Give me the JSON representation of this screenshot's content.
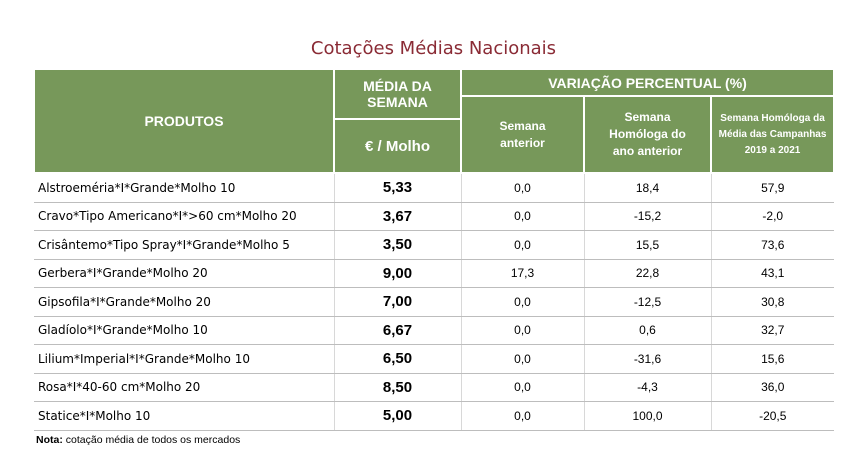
{
  "header": {
    "title": "Cotações Médias Nacionais"
  },
  "table": {
    "columns": {
      "produtos": "PRODUTOS",
      "media": "MÉDIA DA SEMANA",
      "unit": "€ / Molho",
      "variacao": "VARIAÇÃO PERCENTUAL (%)",
      "semana_anterior": "Semana anterior",
      "homologa": "Semana Homóloga do ano anterior",
      "campanhas": "Semana Homóloga da Média das Campanhas 2019 a 2021"
    },
    "rows": [
      [
        "Alstroeméria*I*Grande*Molho 10",
        "5,33",
        "0,0",
        "18,4",
        "57,9"
      ],
      [
        "Cravo*Tipo Americano*I*>60 cm*Molho 20",
        "3,67",
        "0,0",
        "-15,2",
        "-2,0"
      ],
      [
        "Crisântemo*Tipo Spray*I*Grande*Molho 5",
        "3,50",
        "0,0",
        "15,5",
        "73,6"
      ],
      [
        "Gerbera*I*Grande*Molho 20",
        "9,00",
        "17,3",
        "22,8",
        "43,1"
      ],
      [
        "Gipsofila*I*Grande*Molho 20",
        "7,00",
        "0,0",
        "-12,5",
        "30,8"
      ],
      [
        "Gladíolo*I*Grande*Molho 10",
        "6,67",
        "0,0",
        "0,6",
        "32,7"
      ],
      [
        "Lilium*Imperial*I*Grande*Molho 10",
        "6,50",
        "0,0",
        "-31,6",
        "15,6"
      ],
      [
        "Rosa*I*40-60 cm*Molho 20",
        "8,50",
        "0,0",
        "-4,3",
        "36,0"
      ],
      [
        "Statice*I*Molho 10",
        "5,00",
        "0,0",
        "100,0",
        "-20,5"
      ]
    ]
  },
  "note": {
    "label": "Nota:",
    "text": "cotação média de todos os mercados"
  }
}
